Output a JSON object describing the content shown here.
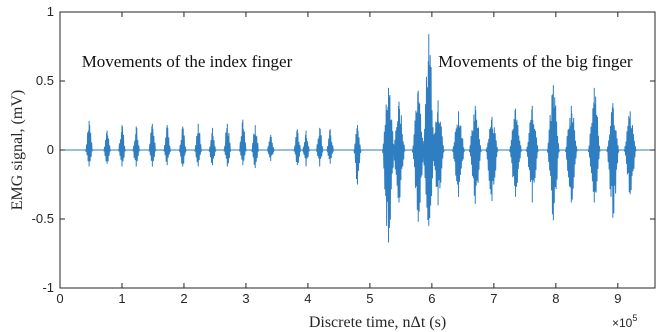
{
  "chart_data": {
    "type": "line",
    "xlabel": "Discrete time, nΔt (s)",
    "ylabel": "EMG signal, (mV)",
    "x_exponent_label": "×10",
    "x_exponent_power": "5",
    "xlim": [
      0,
      9.6
    ],
    "ylim": [
      -1,
      1
    ],
    "x_ticks": [
      0,
      1,
      2,
      3,
      4,
      5,
      6,
      7,
      8,
      9
    ],
    "y_ticks": [
      -1,
      -0.5,
      0,
      0.5,
      1
    ],
    "x_tick_labels": [
      "0",
      "1",
      "2",
      "3",
      "4",
      "5",
      "6",
      "7",
      "8",
      "9"
    ],
    "y_tick_labels": [
      "-1",
      "-0.5",
      "0",
      "0.5",
      "1"
    ],
    "x_scale_note": "x values in units of 1e5 samples",
    "grid": false,
    "series_color": "#2E7EC1",
    "annotations": [
      {
        "text": "Movements of the index finger",
        "x": 0.35,
        "y": 0.6
      },
      {
        "text": "Movements of the big finger",
        "x": 6.1,
        "y": 0.6
      }
    ],
    "bursts": [
      {
        "x": 0.47,
        "max": 0.21,
        "min": -0.12
      },
      {
        "x": 0.76,
        "max": 0.14,
        "min": -0.1
      },
      {
        "x": 1.0,
        "max": 0.18,
        "min": -0.12
      },
      {
        "x": 1.23,
        "max": 0.17,
        "min": -0.12
      },
      {
        "x": 1.49,
        "max": 0.19,
        "min": -0.12
      },
      {
        "x": 1.73,
        "max": 0.18,
        "min": -0.11
      },
      {
        "x": 1.98,
        "max": 0.17,
        "min": -0.12
      },
      {
        "x": 2.23,
        "max": 0.19,
        "min": -0.12
      },
      {
        "x": 2.46,
        "max": 0.16,
        "min": -0.11
      },
      {
        "x": 2.7,
        "max": 0.19,
        "min": -0.12
      },
      {
        "x": 2.95,
        "max": 0.22,
        "min": -0.11
      },
      {
        "x": 3.15,
        "max": 0.18,
        "min": -0.13
      },
      {
        "x": 3.4,
        "max": 0.11,
        "min": -0.08
      },
      {
        "x": 3.83,
        "max": 0.15,
        "min": -0.11
      },
      {
        "x": 3.97,
        "max": 0.14,
        "min": -0.12
      },
      {
        "x": 4.19,
        "max": 0.16,
        "min": -0.12
      },
      {
        "x": 4.36,
        "max": 0.15,
        "min": -0.1
      },
      {
        "x": 4.8,
        "max": 0.18,
        "min": -0.25
      },
      {
        "x": 5.3,
        "max": 0.45,
        "min": -0.67
      },
      {
        "x": 5.47,
        "max": 0.35,
        "min": -0.38
      },
      {
        "x": 5.78,
        "max": 0.43,
        "min": -0.52
      },
      {
        "x": 5.95,
        "max": 0.84,
        "min": -0.55
      },
      {
        "x": 6.1,
        "max": 0.36,
        "min": -0.4
      },
      {
        "x": 6.43,
        "max": 0.28,
        "min": -0.34
      },
      {
        "x": 6.7,
        "max": 0.32,
        "min": -0.39
      },
      {
        "x": 6.97,
        "max": 0.24,
        "min": -0.37
      },
      {
        "x": 7.35,
        "max": 0.3,
        "min": -0.34
      },
      {
        "x": 7.62,
        "max": 0.32,
        "min": -0.38
      },
      {
        "x": 7.96,
        "max": 0.47,
        "min": -0.51
      },
      {
        "x": 8.25,
        "max": 0.32,
        "min": -0.38
      },
      {
        "x": 8.62,
        "max": 0.45,
        "min": -0.38
      },
      {
        "x": 8.92,
        "max": 0.34,
        "min": -0.49
      },
      {
        "x": 9.2,
        "max": 0.28,
        "min": -0.32
      }
    ]
  }
}
